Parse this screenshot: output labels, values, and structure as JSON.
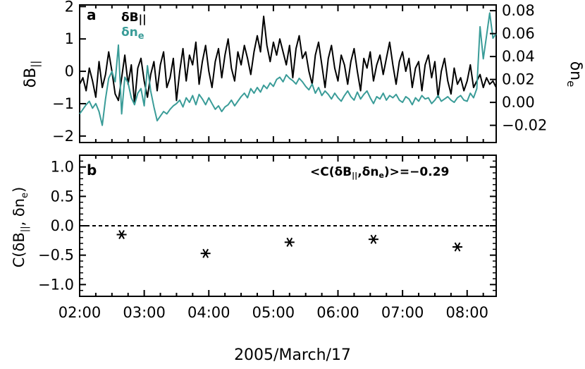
{
  "figure": {
    "xlabel": "2005/March/17",
    "x_ticks": [
      "02:00",
      "03:00",
      "04:00",
      "05:00",
      "06:00",
      "07:00",
      "08:00"
    ]
  },
  "chart_data": [
    {
      "panel_label": "a",
      "type": "line",
      "x_unit": "hours UT",
      "xlim": [
        2.0,
        8.45
      ],
      "left_axis": {
        "ylabel_main": "δB",
        "ylabel_sub": "||",
        "ylim": [
          -2.2,
          2.05
        ],
        "ticks": [
          -2,
          -1,
          0,
          1,
          2
        ]
      },
      "right_axis": {
        "ylabel_main": "δn",
        "ylabel_sub": "e",
        "ylim": [
          -0.035,
          0.085
        ],
        "ticks": [
          -0.02,
          0.0,
          0.02,
          0.04,
          0.06,
          0.08
        ],
        "tick_labels": [
          "−0.02",
          "0.00",
          "0.02",
          "0.04",
          "0.06",
          "0.08"
        ]
      },
      "legend": [
        {
          "main": "δB",
          "sub": "||",
          "color": "#000000"
        },
        {
          "main": "δn",
          "sub": "e",
          "color": "#3a9c98"
        }
      ],
      "series": [
        {
          "name": "δB||",
          "axis": "left",
          "color": "#000000",
          "x": [
            2.0,
            2.05,
            2.1,
            2.15,
            2.2,
            2.25,
            2.3,
            2.35,
            2.4,
            2.45,
            2.5,
            2.55,
            2.6,
            2.65,
            2.7,
            2.75,
            2.8,
            2.85,
            2.9,
            2.95,
            3.0,
            3.05,
            3.1,
            3.15,
            3.2,
            3.25,
            3.3,
            3.35,
            3.4,
            3.45,
            3.5,
            3.55,
            3.6,
            3.65,
            3.7,
            3.75,
            3.8,
            3.85,
            3.9,
            3.95,
            4.0,
            4.05,
            4.1,
            4.15,
            4.2,
            4.25,
            4.3,
            4.35,
            4.4,
            4.45,
            4.5,
            4.55,
            4.6,
            4.65,
            4.7,
            4.75,
            4.8,
            4.85,
            4.9,
            4.95,
            5.0,
            5.05,
            5.1,
            5.15,
            5.2,
            5.25,
            5.3,
            5.35,
            5.4,
            5.45,
            5.5,
            5.55,
            5.6,
            5.65,
            5.7,
            5.75,
            5.8,
            5.85,
            5.9,
            5.95,
            6.0,
            6.05,
            6.1,
            6.15,
            6.2,
            6.25,
            6.3,
            6.35,
            6.4,
            6.45,
            6.5,
            6.55,
            6.6,
            6.65,
            6.7,
            6.75,
            6.8,
            6.85,
            6.9,
            6.95,
            7.0,
            7.05,
            7.1,
            7.15,
            7.2,
            7.25,
            7.3,
            7.35,
            7.4,
            7.45,
            7.5,
            7.55,
            7.6,
            7.65,
            7.7,
            7.75,
            7.8,
            7.85,
            7.9,
            7.95,
            8.0,
            8.05,
            8.1,
            8.15,
            8.2,
            8.25,
            8.3,
            8.35,
            8.4,
            8.45
          ],
          "y": [
            -0.4,
            -0.2,
            -0.6,
            0.1,
            -0.3,
            -0.8,
            0.3,
            -0.5,
            -0.1,
            0.6,
            0.0,
            -0.7,
            -0.9,
            -0.2,
            0.5,
            -0.4,
            0.2,
            -1.0,
            0.1,
            0.4,
            -0.3,
            -0.8,
            -0.1,
            0.3,
            -0.6,
            0.2,
            0.6,
            -0.5,
            -0.2,
            0.4,
            -0.9,
            0.0,
            0.7,
            -0.3,
            0.5,
            0.2,
            0.9,
            -0.4,
            0.3,
            0.8,
            0.0,
            -0.5,
            0.3,
            0.7,
            -0.2,
            0.5,
            1.0,
            0.1,
            -0.3,
            0.6,
            0.2,
            0.8,
            0.4,
            -0.1,
            0.6,
            1.1,
            0.6,
            1.7,
            0.8,
            0.3,
            0.9,
            0.5,
            1.0,
            0.6,
            0.2,
            0.8,
            -0.2,
            0.7,
            1.1,
            0.4,
            0.6,
            0.0,
            -0.4,
            0.5,
            0.9,
            0.2,
            -0.5,
            0.4,
            0.8,
            0.1,
            -0.3,
            0.5,
            0.2,
            -0.4,
            0.3,
            0.7,
            0.0,
            -0.6,
            0.4,
            0.1,
            0.6,
            -0.3,
            0.2,
            0.5,
            -0.1,
            0.4,
            0.9,
            0.2,
            -0.4,
            0.3,
            0.6,
            0.0,
            0.4,
            -0.5,
            0.1,
            0.3,
            -0.6,
            0.2,
            0.5,
            -0.2,
            0.3,
            -0.8,
            0.0,
            0.4,
            -0.3,
            -0.7,
            0.1,
            -0.4,
            -0.2,
            -0.6,
            -0.3,
            0.2,
            -0.5,
            -0.3,
            -0.1,
            -0.5,
            -0.2,
            -0.4,
            -0.3,
            -0.5
          ]
        },
        {
          "name": "δne",
          "axis": "right",
          "color": "#3a9c98",
          "x": [
            2.0,
            2.05,
            2.1,
            2.15,
            2.2,
            2.25,
            2.3,
            2.35,
            2.4,
            2.45,
            2.5,
            2.55,
            2.6,
            2.65,
            2.7,
            2.75,
            2.8,
            2.85,
            2.9,
            2.95,
            3.0,
            3.05,
            3.1,
            3.15,
            3.2,
            3.25,
            3.3,
            3.35,
            3.4,
            3.45,
            3.5,
            3.55,
            3.6,
            3.65,
            3.7,
            3.75,
            3.8,
            3.85,
            3.9,
            3.95,
            4.0,
            4.05,
            4.1,
            4.15,
            4.2,
            4.25,
            4.3,
            4.35,
            4.4,
            4.45,
            4.5,
            4.55,
            4.6,
            4.65,
            4.7,
            4.75,
            4.8,
            4.85,
            4.9,
            4.95,
            5.0,
            5.05,
            5.1,
            5.15,
            5.2,
            5.25,
            5.3,
            5.35,
            5.4,
            5.45,
            5.5,
            5.55,
            5.6,
            5.65,
            5.7,
            5.75,
            5.8,
            5.85,
            5.9,
            5.95,
            6.0,
            6.05,
            6.1,
            6.15,
            6.2,
            6.25,
            6.3,
            6.35,
            6.4,
            6.45,
            6.5,
            6.55,
            6.6,
            6.65,
            6.7,
            6.75,
            6.8,
            6.85,
            6.9,
            6.95,
            7.0,
            7.05,
            7.1,
            7.15,
            7.2,
            7.25,
            7.3,
            7.35,
            7.4,
            7.45,
            7.5,
            7.55,
            7.6,
            7.65,
            7.7,
            7.75,
            7.8,
            7.85,
            7.9,
            7.95,
            8.0,
            8.05,
            8.1,
            8.15,
            8.2,
            8.25,
            8.3,
            8.35,
            8.4,
            8.45
          ],
          "y": [
            -0.01,
            -0.006,
            -0.002,
            0.001,
            -0.005,
            -0.001,
            -0.008,
            -0.02,
            0.003,
            0.021,
            0.027,
            0.018,
            0.05,
            -0.01,
            0.022,
            0.017,
            0.004,
            -0.002,
            0.008,
            0.012,
            -0.003,
            0.032,
            0.01,
            -0.004,
            -0.016,
            -0.012,
            -0.008,
            -0.01,
            -0.006,
            -0.003,
            -0.001,
            0.002,
            -0.004,
            0.004,
            0.0,
            0.006,
            -0.002,
            0.007,
            0.003,
            -0.002,
            0.004,
            -0.001,
            -0.006,
            -0.003,
            -0.008,
            -0.004,
            -0.002,
            0.002,
            -0.003,
            0.001,
            0.005,
            0.008,
            0.004,
            0.012,
            0.008,
            0.013,
            0.009,
            0.015,
            0.012,
            0.017,
            0.014,
            0.02,
            0.022,
            0.018,
            0.024,
            0.021,
            0.019,
            0.016,
            0.021,
            0.018,
            0.014,
            0.011,
            0.016,
            0.008,
            0.013,
            0.006,
            0.01,
            0.007,
            0.003,
            0.008,
            0.004,
            0.001,
            0.006,
            0.01,
            0.005,
            0.002,
            0.009,
            0.003,
            0.007,
            0.01,
            0.004,
            -0.001,
            0.005,
            0.003,
            0.008,
            0.002,
            0.006,
            0.004,
            0.007,
            0.002,
            0.0,
            0.005,
            0.003,
            -0.002,
            0.004,
            0.001,
            0.006,
            0.003,
            0.004,
            -0.001,
            0.002,
            0.006,
            0.001,
            0.003,
            0.005,
            0.002,
            0.0,
            0.004,
            0.006,
            0.002,
            0.001,
            0.008,
            0.004,
            0.012,
            0.066,
            0.038,
            0.058,
            0.078,
            0.056,
            0.06
          ]
        }
      ]
    },
    {
      "panel_label": "b",
      "type": "scatter",
      "x_unit": "hours UT",
      "xlim": [
        2.0,
        8.45
      ],
      "ylabel_main": "C(δB",
      "ylabel_sub1": "||",
      "ylabel_mid": ", δn",
      "ylabel_sub2": "e",
      "ylabel_end": ")",
      "ylim": [
        -1.2,
        1.2
      ],
      "y_ticks": [
        -1.0,
        -0.5,
        0.0,
        0.5,
        1.0
      ],
      "y_tick_labels": [
        "−1.0",
        "−0.5",
        "0.0",
        "0.5",
        "1.0"
      ],
      "reference_line": 0.0,
      "annotation": {
        "pre": "<C(δB",
        "sub1": "||",
        "mid": ",δn",
        "sub2": "e",
        "post": ")>=−0.29"
      },
      "marker": "asterisk",
      "points": {
        "x": [
          2.65,
          3.95,
          5.25,
          6.55,
          7.85
        ],
        "y": [
          -0.15,
          -0.47,
          -0.28,
          -0.23,
          -0.36
        ]
      }
    }
  ]
}
